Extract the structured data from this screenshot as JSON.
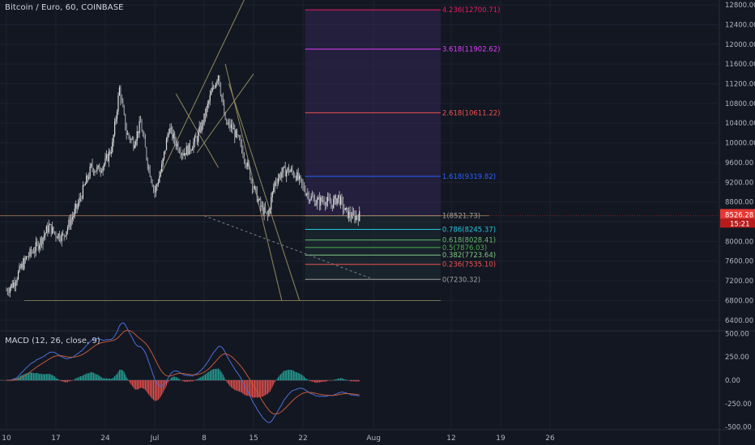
{
  "header": {
    "title": "Bitcoin / Euro, 60, COINBASE",
    "macd_title": "MACD (12, 26, close, 9)"
  },
  "colors": {
    "background": "#131722",
    "grid": "#1e2230",
    "candle": "#c8c8c8",
    "last_price": "#e53935",
    "macd": "#4a6fd6",
    "signal": "#c05a3a",
    "hist_up": "#26a69a",
    "hist_down": "#ef5350",
    "fib_zone": "#3a2a5e",
    "trend_line": "#8f8a5e"
  },
  "chart_data": [
    {
      "type": "candlestick",
      "symbol": "Bitcoin / Euro",
      "interval": "60",
      "exchange": "COINBASE",
      "ylim": [
        6200,
        12900
      ],
      "y_ticks": [
        "12800.00",
        "12400.00",
        "12000.00",
        "11600.00",
        "11200.00",
        "10800.00",
        "10400.00",
        "10000.00",
        "9600.00",
        "9200.00",
        "8800.00",
        "8400.00",
        "8000.00",
        "7600.00",
        "7200.00",
        "6800.00",
        "6400.00"
      ],
      "x_ticks": [
        "10",
        "17",
        "24",
        "Jul",
        "8",
        "15",
        "22",
        "Aug",
        "12",
        "19",
        "26"
      ],
      "grid": true,
      "last_price": "8526.28",
      "countdown": "15:21",
      "price_path": [
        [
          "Jun 10",
          7000
        ],
        [
          "Jun 11",
          7150
        ],
        [
          "Jun 12",
          7450
        ],
        [
          "Jun 13",
          7700
        ],
        [
          "Jun 14",
          7850
        ],
        [
          "Jun 15",
          8050
        ],
        [
          "Jun 16",
          8300
        ],
        [
          "Jun 17",
          8150
        ],
        [
          "Jun 18",
          8100
        ],
        [
          "Jun 19",
          8400
        ],
        [
          "Jun 20",
          8700
        ],
        [
          "Jun 21",
          9100
        ],
        [
          "Jun 22",
          9500
        ],
        [
          "Jun 23",
          9450
        ],
        [
          "Jun 24",
          9600
        ],
        [
          "Jun 25",
          9950
        ],
        [
          "Jun 26",
          11100
        ],
        [
          "Jun 27",
          10200
        ],
        [
          "Jun 28",
          10000
        ],
        [
          "Jun 29",
          10400
        ],
        [
          "Jun 30",
          9600
        ],
        [
          "Jul 1",
          9000
        ],
        [
          "Jul 2",
          9500
        ],
        [
          "Jul 3",
          10300
        ],
        [
          "Jul 4",
          10000
        ],
        [
          "Jul 5",
          9800
        ],
        [
          "Jul 6",
          9900
        ],
        [
          "Jul 7",
          10100
        ],
        [
          "Jul 8",
          10500
        ],
        [
          "Jul 9",
          11000
        ],
        [
          "Jul 10",
          11400
        ],
        [
          "Jul 11",
          10400
        ],
        [
          "Jul 12",
          10300
        ],
        [
          "Jul 13",
          10000
        ],
        [
          "Jul 14",
          9600
        ],
        [
          "Jul 15",
          9100
        ],
        [
          "Jul 16",
          8700
        ],
        [
          "Jul 17",
          8500
        ],
        [
          "Jul 18",
          9200
        ],
        [
          "Jul 19",
          9400
        ],
        [
          "Jul 20",
          9450
        ],
        [
          "Jul 21",
          9350
        ],
        [
          "Jul 22",
          9100
        ],
        [
          "Jul 23",
          8900
        ],
        [
          "Jul 24",
          8800
        ],
        [
          "Jul 25",
          8850
        ],
        [
          "Jul 26",
          8750
        ],
        [
          "Jul 27",
          8900
        ],
        [
          "Jul 28",
          8600
        ],
        [
          "Jul 29",
          8500
        ],
        [
          "Jul 30",
          8526
        ]
      ],
      "fibonacci_extension": [
        {
          "label": "4.236(12700.71)",
          "value": 12700.71,
          "color": "#e91e63"
        },
        {
          "label": "3.618(11902.62)",
          "value": 11902.62,
          "color": "#e040fb"
        },
        {
          "label": "2.618(10611.22)",
          "value": 10611.22,
          "color": "#ef5350"
        },
        {
          "label": "1.618(9319.82)",
          "value": 9319.82,
          "color": "#2962ff"
        },
        {
          "label": "1(8521.73)",
          "value": 8521.73,
          "color": "#9e9e9e"
        },
        {
          "label": "0.786(8245.37)",
          "value": 8245.37,
          "color": "#26c6da"
        },
        {
          "label": "0.618(8028.41)",
          "value": 8028.41,
          "color": "#66bb6a"
        },
        {
          "label": "0.5(7876.03)",
          "value": 7876.03,
          "color": "#4caf50"
        },
        {
          "label": "0.382(7723.64)",
          "value": 7723.64,
          "color": "#81c784"
        },
        {
          "label": "0.236(7535.10)",
          "value": 7535.1,
          "color": "#ef5350"
        },
        {
          "label": "0(7230.32)",
          "value": 7230.32,
          "color": "#9e9e9e"
        }
      ]
    },
    {
      "type": "line",
      "name": "MACD (12, 26, close, 9)",
      "ylim": [
        -520,
        520
      ],
      "y_ticks": [
        "500.00",
        "250.00",
        "0.00",
        "-250.00",
        "-500.00"
      ]
    }
  ]
}
